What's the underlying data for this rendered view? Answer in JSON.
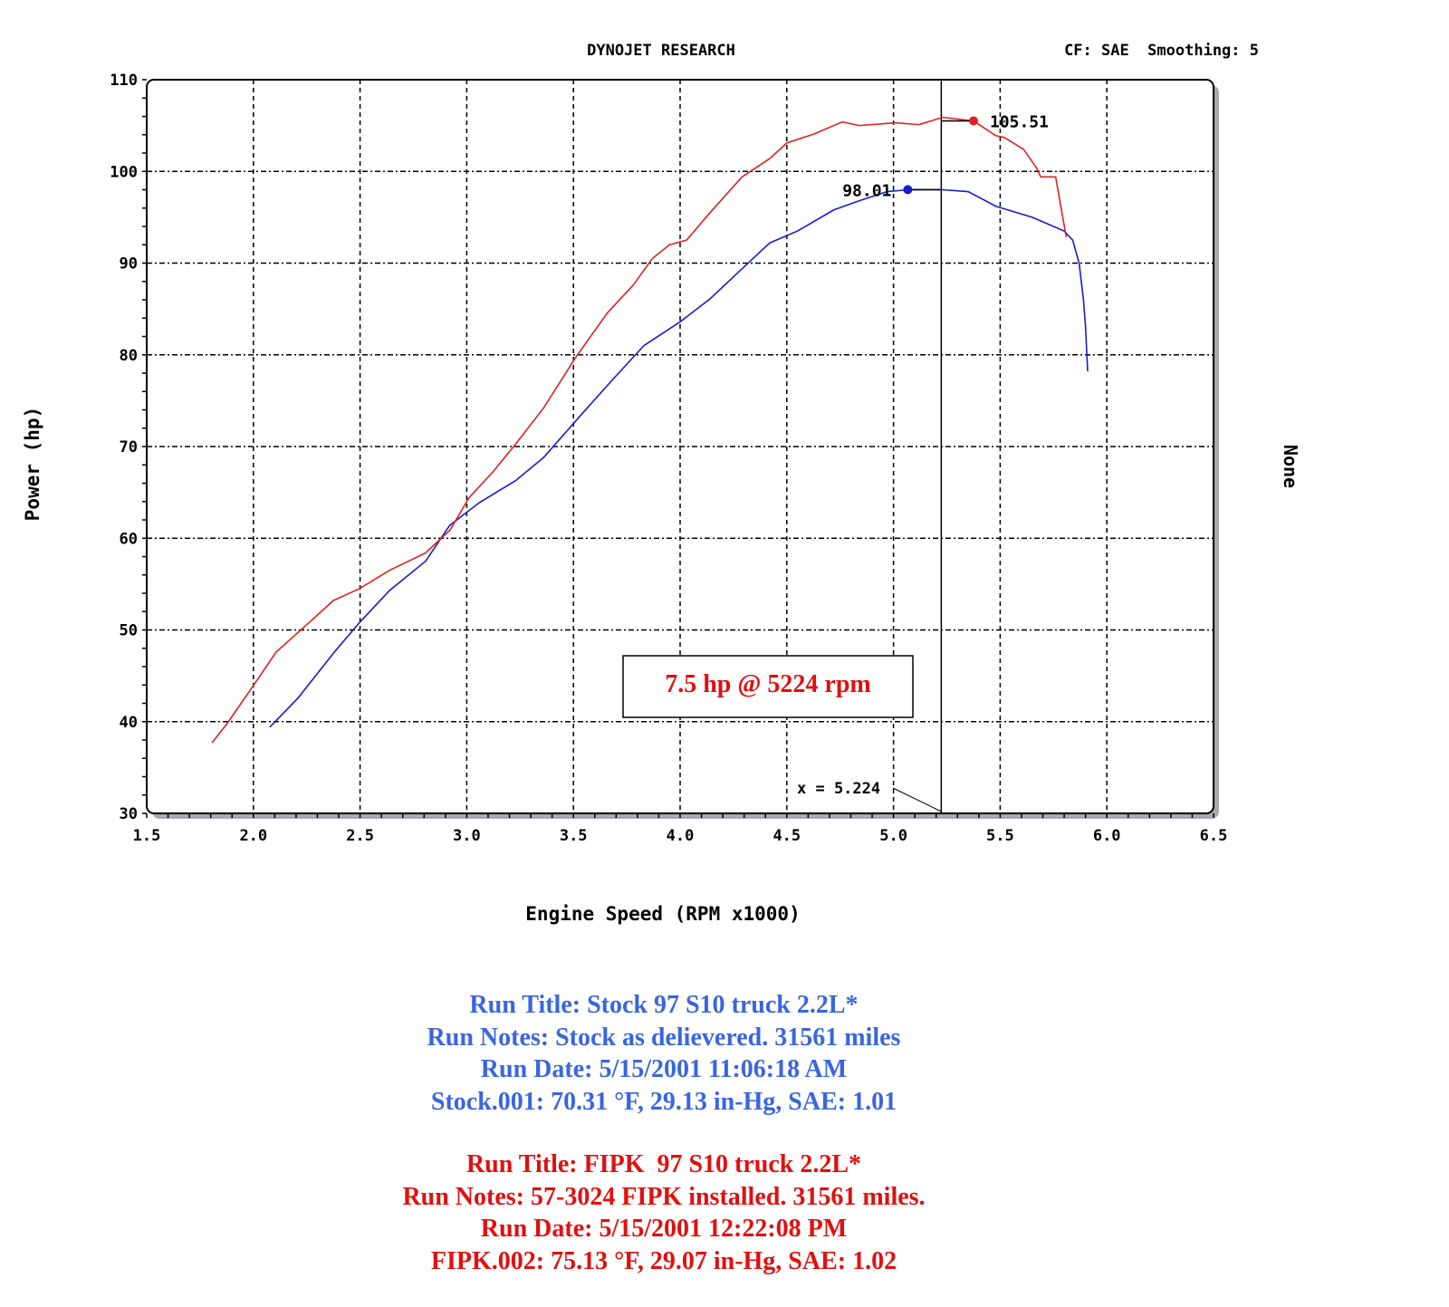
{
  "header": {
    "title": "DYNOJET RESEARCH",
    "settings": "CF: SAE  Smoothing: 5",
    "right_axis_label": "None"
  },
  "chart_data": {
    "type": "line",
    "xlabel": "Engine Speed (RPM x1000)",
    "ylabel": "Power (hp)",
    "xlim": [
      1.5,
      6.5
    ],
    "ylim": [
      30,
      110
    ],
    "x_ticks": [
      "1.5",
      "2.0",
      "2.5",
      "3.0",
      "3.5",
      "4.0",
      "4.5",
      "5.0",
      "5.5",
      "6.0",
      "6.5"
    ],
    "y_ticks": [
      "30",
      "40",
      "50",
      "60",
      "70",
      "80",
      "90",
      "100",
      "110"
    ],
    "grid": true,
    "colors": {
      "fipk": "#e02020",
      "stock": "#1a1ad0",
      "notes_blue": "#3a66dd",
      "notes_red": "#e01010"
    },
    "series": [
      {
        "key": "stock",
        "peak_label": "98.01",
        "peak": [
          5.067,
          98.01
        ],
        "points": [
          [
            2.077,
            39.4
          ],
          [
            2.21,
            42.6
          ],
          [
            2.38,
            47.6
          ],
          [
            2.497,
            50.8
          ],
          [
            2.638,
            54.3
          ],
          [
            2.807,
            57.5
          ],
          [
            2.92,
            61.4
          ],
          [
            3.06,
            63.9
          ],
          [
            3.23,
            66.3
          ],
          [
            3.36,
            68.8
          ],
          [
            3.53,
            73.3
          ],
          [
            3.68,
            77.2
          ],
          [
            3.83,
            81.0
          ],
          [
            4.0,
            83.6
          ],
          [
            4.14,
            86.1
          ],
          [
            4.3,
            89.6
          ],
          [
            4.42,
            92.2
          ],
          [
            4.55,
            93.5
          ],
          [
            4.72,
            95.8
          ],
          [
            4.84,
            96.8
          ],
          [
            4.97,
            97.8
          ],
          [
            5.067,
            98.0
          ],
          [
            5.23,
            98.0
          ],
          [
            5.35,
            97.8
          ],
          [
            5.48,
            96.2
          ],
          [
            5.65,
            95.0
          ],
          [
            5.8,
            93.5
          ],
          [
            5.84,
            92.5
          ],
          [
            5.87,
            90.0
          ],
          [
            5.89,
            86.1
          ],
          [
            5.9,
            83.1
          ],
          [
            5.91,
            78.2
          ]
        ]
      },
      {
        "key": "fipk",
        "peak_label": "105.51",
        "peak": [
          5.375,
          105.51
        ],
        "points": [
          [
            1.806,
            37.7
          ],
          [
            1.874,
            39.7
          ],
          [
            1.99,
            43.6
          ],
          [
            2.107,
            47.6
          ],
          [
            2.256,
            50.7
          ],
          [
            2.374,
            53.2
          ],
          [
            2.497,
            54.5
          ],
          [
            2.638,
            56.5
          ],
          [
            2.807,
            58.4
          ],
          [
            2.922,
            60.9
          ],
          [
            3.01,
            64.4
          ],
          [
            3.125,
            67.3
          ],
          [
            3.23,
            70.3
          ],
          [
            3.36,
            74.2
          ],
          [
            3.51,
            79.7
          ],
          [
            3.66,
            84.6
          ],
          [
            3.78,
            87.6
          ],
          [
            3.87,
            90.5
          ],
          [
            3.95,
            92.0
          ],
          [
            4.03,
            92.5
          ],
          [
            4.14,
            95.5
          ],
          [
            4.29,
            99.4
          ],
          [
            4.42,
            101.4
          ],
          [
            4.5,
            103.1
          ],
          [
            4.63,
            104.1
          ],
          [
            4.76,
            105.4
          ],
          [
            4.84,
            105.0
          ],
          [
            5.01,
            105.3
          ],
          [
            5.12,
            105.1
          ],
          [
            5.23,
            105.9
          ],
          [
            5.375,
            105.5
          ],
          [
            5.48,
            103.9
          ],
          [
            5.52,
            103.7
          ],
          [
            5.61,
            102.4
          ],
          [
            5.67,
            100.4
          ],
          [
            5.69,
            99.4
          ],
          [
            5.76,
            99.4
          ],
          [
            5.81,
            92.8
          ]
        ]
      }
    ],
    "cursor": {
      "x": 5.224,
      "label": "x = 5.224"
    },
    "annotation": "7.5 hp @ 5224 rpm"
  },
  "runs": [
    {
      "color": "blue",
      "lines": [
        "Run Title: Stock 97 S10 truck 2.2L*",
        "Run Notes: Stock as delievered. 31561 miles",
        "Run Date: 5/15/2001 11:06:18 AM",
        "Stock.001: 70.31 °F, 29.13 in-Hg, SAE: 1.01"
      ]
    },
    {
      "color": "red",
      "lines": [
        "Run Title: FIPK  97 S10 truck 2.2L*",
        "Run Notes: 57-3024 FIPK installed. 31561 miles.",
        "Run Date: 5/15/2001 12:22:08 PM",
        "FIPK.002: 75.13 °F, 29.07 in-Hg, SAE: 1.02"
      ]
    }
  ]
}
